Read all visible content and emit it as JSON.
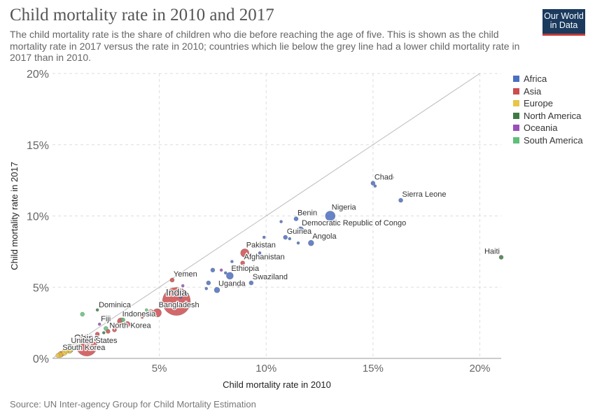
{
  "header": {
    "title": "Child mortality rate in 2010 and 2017",
    "subtitle": "The child mortality rate is the share of children who die before reaching the age of five. This is shown as the child mortality rate in 2017 versus the rate in 2010; countries which lie below the grey line had a lower child mortality rate in 2017 than in 2010.",
    "logo_line1": "Our World",
    "logo_line2": "in Data"
  },
  "footer": {
    "source": "Source: UN Inter-agency Group for Child Mortality Estimation"
  },
  "colors": {
    "Africa": "#4c6fbf",
    "Asia": "#cc4c4f",
    "Europe": "#e8c547",
    "North America": "#3f7a43",
    "Oceania": "#9b4fb8",
    "South America": "#5fbf7a"
  },
  "chart_data": {
    "type": "scatter",
    "title": "Child mortality rate in 2010 and 2017",
    "xlabel": "Child mortality rate in 2010",
    "ylabel": "Child mortality rate in 2017",
    "xlim": [
      0,
      21
    ],
    "ylim": [
      0,
      20
    ],
    "x_ticks": [
      {
        "v": 5,
        "label": "5%"
      },
      {
        "v": 10,
        "label": "10%"
      },
      {
        "v": 15,
        "label": "15%"
      },
      {
        "v": 20,
        "label": "20%"
      }
    ],
    "y_ticks": [
      {
        "v": 0,
        "label": "0%"
      },
      {
        "v": 5,
        "label": "5%"
      },
      {
        "v": 10,
        "label": "10%"
      },
      {
        "v": 15,
        "label": "15%"
      },
      {
        "v": 20,
        "label": "20%"
      }
    ],
    "grid": true,
    "reference_line": "y = x",
    "legend": "right",
    "series": [
      {
        "name": "Africa",
        "points": [
          {
            "x": 15.0,
            "y": 12.3,
            "size": 3,
            "label": "Chad"
          },
          {
            "x": 16.3,
            "y": 11.1,
            "size": 3,
            "label": "Sierra Leone"
          },
          {
            "x": 13.0,
            "y": 10.0,
            "size": 7,
            "label": "Nigeria"
          },
          {
            "x": 11.4,
            "y": 9.8,
            "size": 3,
            "label": "Benin"
          },
          {
            "x": 11.6,
            "y": 9.0,
            "size": 5,
            "label": "Democratic Republic of Congo"
          },
          {
            "x": 10.9,
            "y": 8.5,
            "size": 3,
            "label": "Guinea"
          },
          {
            "x": 12.1,
            "y": 8.1,
            "size": 4,
            "label": "Angola"
          },
          {
            "x": 8.3,
            "y": 5.8,
            "size": 5,
            "label": "Ethiopia"
          },
          {
            "x": 9.3,
            "y": 5.3,
            "size": 3,
            "label": "Swaziland"
          },
          {
            "x": 7.7,
            "y": 4.8,
            "size": 4,
            "label": "Uganda"
          },
          {
            "x": 15.9,
            "y": 12.7,
            "size": 2
          },
          {
            "x": 15.1,
            "y": 12.1,
            "size": 2
          },
          {
            "x": 13.6,
            "y": 10.6,
            "size": 2
          },
          {
            "x": 10.7,
            "y": 9.6,
            "size": 2
          },
          {
            "x": 11.1,
            "y": 8.4,
            "size": 2
          },
          {
            "x": 11.5,
            "y": 8.1,
            "size": 2
          },
          {
            "x": 9.9,
            "y": 8.5,
            "size": 2
          },
          {
            "x": 9.7,
            "y": 7.4,
            "size": 2
          },
          {
            "x": 10.3,
            "y": 7.2,
            "size": 2
          },
          {
            "x": 7.5,
            "y": 6.2,
            "size": 3
          },
          {
            "x": 8.1,
            "y": 6.0,
            "size": 2
          },
          {
            "x": 8.4,
            "y": 6.8,
            "size": 2
          },
          {
            "x": 7.3,
            "y": 5.3,
            "size": 3
          },
          {
            "x": 7.2,
            "y": 4.9,
            "size": 2
          },
          {
            "x": 8.7,
            "y": 5.1,
            "size": 2
          },
          {
            "x": 6.3,
            "y": 4.5,
            "size": 2
          },
          {
            "x": 6.0,
            "y": 4.3,
            "size": 2
          },
          {
            "x": 3.1,
            "y": 2.4,
            "size": 2
          }
        ]
      },
      {
        "name": "Asia",
        "points": [
          {
            "x": 9.0,
            "y": 7.4,
            "size": 6,
            "label": "Pakistan"
          },
          {
            "x": 8.9,
            "y": 6.7,
            "size": 3,
            "label": "Afghanistan"
          },
          {
            "x": 5.6,
            "y": 5.5,
            "size": 3,
            "label": "Yemen"
          },
          {
            "x": 5.8,
            "y": 4.0,
            "size": 20,
            "label": "India"
          },
          {
            "x": 4.9,
            "y": 3.2,
            "size": 6,
            "label": "Bangladesh"
          },
          {
            "x": 3.2,
            "y": 2.6,
            "size": 5,
            "label": "Indonesia"
          },
          {
            "x": 2.6,
            "y": 1.9,
            "size": 3,
            "label": "North Korea"
          },
          {
            "x": 1.6,
            "y": 0.9,
            "size": 15,
            "label": "China"
          },
          {
            "x": 0.4,
            "y": 0.3,
            "size": 4,
            "label": "South Korea"
          },
          {
            "x": 3.5,
            "y": 2.4,
            "size": 4
          },
          {
            "x": 4.6,
            "y": 3.3,
            "size": 3
          },
          {
            "x": 2.9,
            "y": 2.0,
            "size": 3
          },
          {
            "x": 2.1,
            "y": 1.7,
            "size": 3
          },
          {
            "x": 4.2,
            "y": 2.9,
            "size": 2
          }
        ]
      },
      {
        "name": "Europe",
        "points": [
          {
            "x": 0.35,
            "y": 0.25,
            "size": 4
          },
          {
            "x": 0.55,
            "y": 0.4,
            "size": 4
          },
          {
            "x": 0.8,
            "y": 0.55,
            "size": 4
          },
          {
            "x": 0.25,
            "y": 0.2,
            "size": 3
          },
          {
            "x": 1.0,
            "y": 0.7,
            "size": 3
          },
          {
            "x": 0.65,
            "y": 0.5,
            "size": 3
          },
          {
            "x": 1.3,
            "y": 1.1,
            "size": 3
          }
        ]
      },
      {
        "name": "North America",
        "points": [
          {
            "x": 21.0,
            "y": 7.1,
            "size": 3,
            "label": "Haiti"
          },
          {
            "x": 2.1,
            "y": 3.4,
            "size": 2,
            "label": "Dominica"
          },
          {
            "x": 0.8,
            "y": 0.7,
            "size": 6,
            "label": "United States"
          },
          {
            "x": 2.4,
            "y": 1.8,
            "size": 2
          }
        ]
      },
      {
        "name": "Oceania",
        "points": [
          {
            "x": 2.2,
            "y": 2.4,
            "size": 2,
            "label": "Fiji"
          },
          {
            "x": 6.1,
            "y": 5.1,
            "size": 2
          },
          {
            "x": 7.9,
            "y": 6.2,
            "size": 2
          },
          {
            "x": 3.5,
            "y": 3.2,
            "size": 2
          },
          {
            "x": 1.6,
            "y": 1.4,
            "size": 2
          }
        ]
      },
      {
        "name": "South America",
        "points": [
          {
            "x": 1.4,
            "y": 3.1,
            "size": 3
          },
          {
            "x": 1.8,
            "y": 1.5,
            "size": 3
          },
          {
            "x": 2.5,
            "y": 2.1,
            "size": 3
          },
          {
            "x": 3.3,
            "y": 2.7,
            "size": 3
          },
          {
            "x": 1.2,
            "y": 1.0,
            "size": 3
          },
          {
            "x": 4.4,
            "y": 3.4,
            "size": 2
          }
        ]
      }
    ]
  }
}
